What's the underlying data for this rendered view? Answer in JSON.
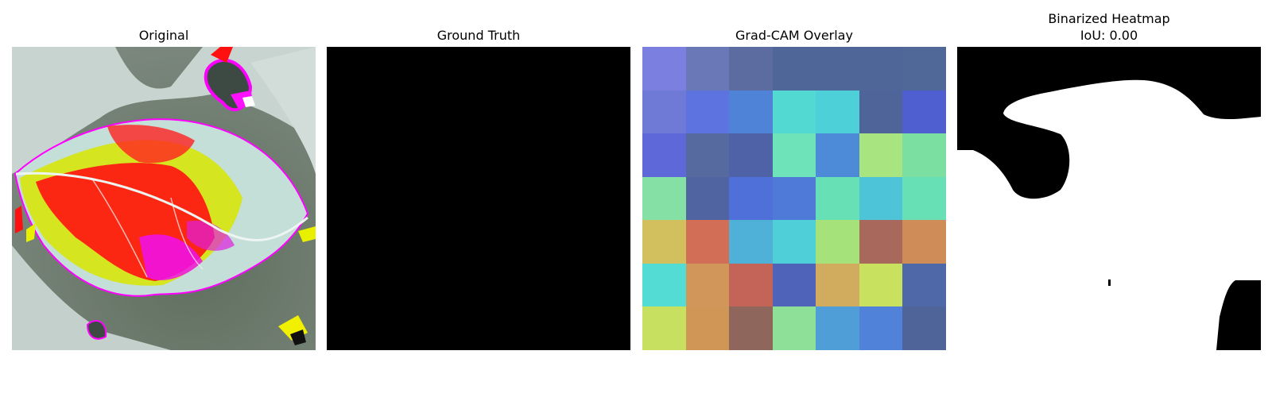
{
  "panels": [
    {
      "title": "Original"
    },
    {
      "title": "Ground Truth"
    },
    {
      "title": "Grad-CAM Overlay"
    },
    {
      "title": "Binarized Heatmap",
      "subtitle": "IoU: 0.00"
    }
  ],
  "gradcam_grid": [
    [
      "#7a7fe0",
      "#6a78b8",
      "#5c6ba0",
      "#4f6698",
      "#4f6698",
      "#4f6698",
      "#4f6898"
    ],
    [
      "#6f7ad6",
      "#5d74e0",
      "#4f83d8",
      "#52dad2",
      "#4ed0d8",
      "#4f6498",
      "#4f5fd0"
    ],
    [
      "#5e68d8",
      "#566aa0",
      "#4f62a8",
      "#6ee2b8",
      "#4d8ad8",
      "#a8e480",
      "#7adfa0"
    ],
    [
      "#84e0a4",
      "#4f64a0",
      "#4e70d8",
      "#507ad8",
      "#66e0b4",
      "#4ec4d8",
      "#66e0b4"
    ],
    [
      "#d2c05e",
      "#d26e56",
      "#4fb0d8",
      "#4fd0d8",
      "#a6e27a",
      "#a8685c",
      "#d08c58"
    ],
    [
      "#52dcd4",
      "#d0965a",
      "#c46458",
      "#4f64b8",
      "#d2ac5e",
      "#c8e260",
      "#4f68a8"
    ],
    [
      "#c8e060",
      "#d09656",
      "#8e665c",
      "#8ee098",
      "#4f9ed8",
      "#4f82d8",
      "#4f6498"
    ]
  ]
}
